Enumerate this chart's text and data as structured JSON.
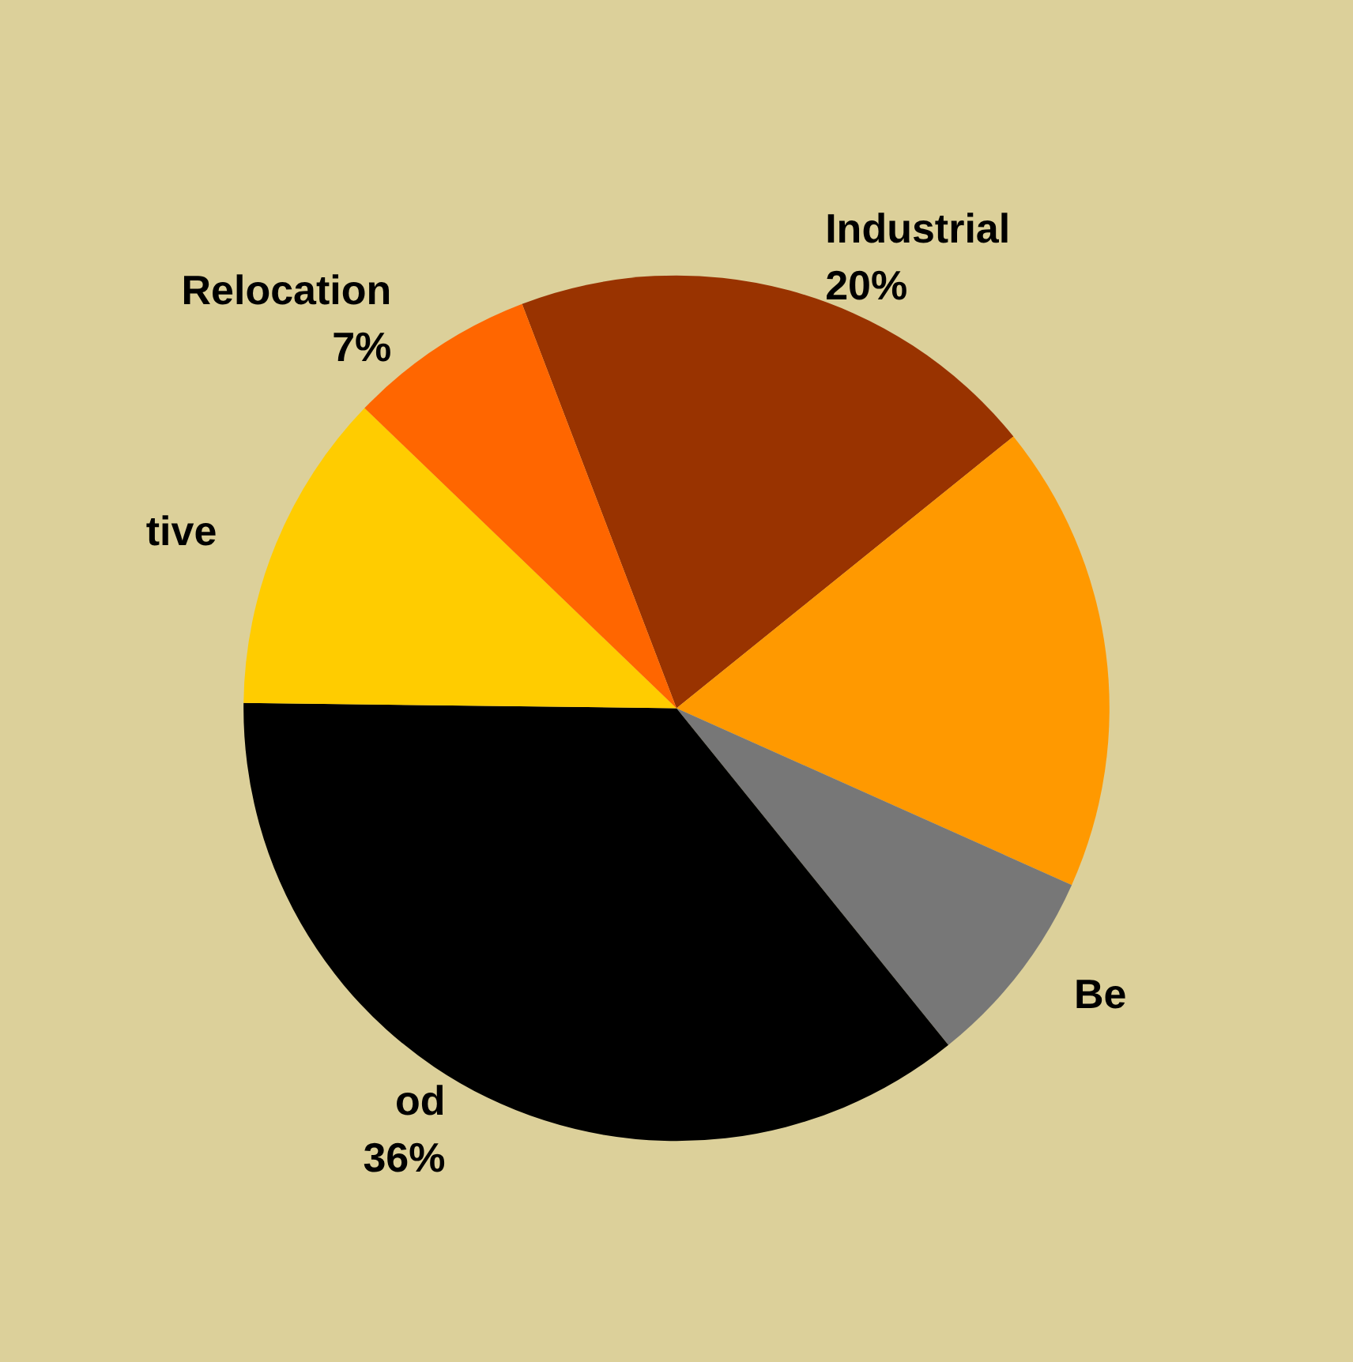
{
  "chart_data": {
    "type": "pie",
    "categories": [
      "Industrial",
      null,
      "Be",
      "od",
      "tive",
      "Relocation"
    ],
    "values": [
      20,
      17.5,
      7.5,
      36,
      12,
      7
    ],
    "value_labels": [
      "20%",
      null,
      null,
      "36%",
      null,
      "7%"
    ],
    "colors": [
      "#993300",
      "#ff9900",
      "#777777",
      "#000000",
      "#ffcc00",
      "#ff6600"
    ]
  }
}
